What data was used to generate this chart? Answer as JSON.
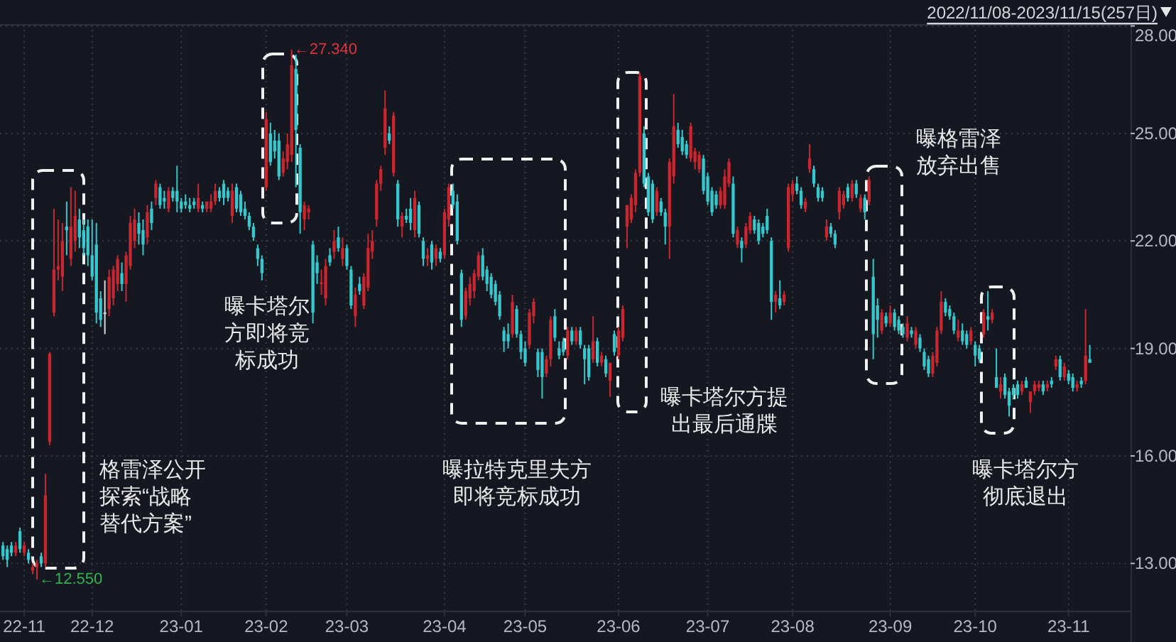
{
  "chart_data": {
    "type": "candlestick",
    "title": "2022/11/08-2023/11/15(257日)",
    "categories": [
      null,
      null,
      null,
      null,
      null,
      "22-11",
      null,
      null,
      null,
      null,
      null,
      null,
      null,
      null,
      null,
      null,
      null,
      null,
      null,
      null,
      null,
      "22-12",
      null,
      null,
      null,
      null,
      null,
      null,
      null,
      null,
      null,
      null,
      null,
      null,
      null,
      null,
      null,
      null,
      null,
      null,
      null,
      null,
      "23-01",
      null,
      null,
      null,
      null,
      null,
      null,
      null,
      null,
      null,
      null,
      null,
      null,
      null,
      null,
      null,
      null,
      null,
      null,
      null,
      "23-02",
      null,
      null,
      null,
      null,
      null,
      null,
      null,
      null,
      null,
      null,
      null,
      null,
      null,
      null,
      null,
      null,
      null,
      null,
      "23-03",
      null,
      null,
      null,
      null,
      null,
      null,
      null,
      null,
      null,
      null,
      null,
      null,
      null,
      null,
      null,
      null,
      null,
      null,
      null,
      null,
      null,
      null,
      "23-04",
      null,
      null,
      null,
      null,
      null,
      null,
      null,
      null,
      null,
      null,
      null,
      null,
      null,
      null,
      null,
      null,
      null,
      null,
      "23-05",
      null,
      null,
      null,
      null,
      null,
      null,
      null,
      null,
      null,
      null,
      null,
      null,
      null,
      null,
      null,
      null,
      null,
      null,
      null,
      null,
      null,
      "23-06",
      null,
      null,
      null,
      null,
      null,
      null,
      null,
      null,
      null,
      null,
      null,
      null,
      null,
      null,
      null,
      null,
      null,
      null,
      null,
      null,
      "23-07",
      null,
      null,
      null,
      null,
      null,
      null,
      null,
      null,
      null,
      null,
      null,
      null,
      null,
      null,
      null,
      null,
      null,
      null,
      null,
      "23-08",
      null,
      null,
      null,
      null,
      null,
      null,
      null,
      null,
      null,
      null,
      null,
      null,
      null,
      null,
      null,
      null,
      null,
      null,
      null,
      null,
      null,
      null,
      "23-09",
      null,
      null,
      null,
      null,
      null,
      null,
      null,
      null,
      null,
      null,
      null,
      null,
      null,
      null,
      null,
      null,
      null,
      null,
      null,
      "23-10",
      null,
      null,
      null,
      null,
      null,
      null,
      null,
      null,
      null,
      null,
      null,
      null,
      null,
      null,
      null,
      null,
      null,
      null,
      null,
      null,
      null,
      "23-11",
      null,
      null,
      null,
      null,
      null
    ],
    "ohlc": [
      [
        13.5,
        13.6,
        13.1,
        13.2
      ],
      [
        13.4,
        13.5,
        12.9,
        13.1
      ],
      [
        13.5,
        13.6,
        13.2,
        13.3
      ],
      [
        13.3,
        13.6,
        13.2,
        13.5
      ],
      [
        13.9,
        14.0,
        13.3,
        13.4
      ],
      [
        13.3,
        13.6,
        13.2,
        13.5
      ],
      [
        13.3,
        13.4,
        13.0,
        13.1
      ],
      [
        12.8,
        13.0,
        12.7,
        12.9
      ],
      [
        12.9,
        13.1,
        12.55,
        13.0
      ],
      [
        13.2,
        13.3,
        12.9,
        13.0
      ],
      [
        13.0,
        15.5,
        12.9,
        14.9
      ],
      [
        16.4,
        18.9,
        16.3,
        18.85
      ],
      [
        20.0,
        22.9,
        19.9,
        21.2
      ],
      [
        21.2,
        22.6,
        20.9,
        21.3
      ],
      [
        21.0,
        22.5,
        20.6,
        22.0
      ],
      [
        22.4,
        23.1,
        21.6,
        22.3
      ],
      [
        21.5,
        23.5,
        21.3,
        22.4
      ],
      [
        22.0,
        23.4,
        21.7,
        22.7
      ],
      [
        22.6,
        22.9,
        21.8,
        22.1
      ],
      [
        22.3,
        22.6,
        21.6,
        21.8
      ],
      [
        22.4,
        22.6,
        21.3,
        21.6
      ],
      [
        21.6,
        22.6,
        20.9,
        21.0
      ],
      [
        21.9,
        22.5,
        19.7,
        20.0
      ],
      [
        20.4,
        20.6,
        19.6,
        19.8
      ],
      [
        20.0,
        20.9,
        19.4,
        20.0
      ],
      [
        20.1,
        21.2,
        19.9,
        21.0
      ],
      [
        20.4,
        21.3,
        20.2,
        21.2
      ],
      [
        20.8,
        21.6,
        20.6,
        21.5
      ],
      [
        21.1,
        21.4,
        20.6,
        20.8
      ],
      [
        20.8,
        21.7,
        20.3,
        21.6
      ],
      [
        21.3,
        22.7,
        21.2,
        22.5
      ],
      [
        22.0,
        22.9,
        21.8,
        22.6
      ],
      [
        22.5,
        22.8,
        21.9,
        22.2
      ],
      [
        22.3,
        22.6,
        21.6,
        21.9
      ],
      [
        22.1,
        23.0,
        21.9,
        22.8
      ],
      [
        22.9,
        23.1,
        22.3,
        22.5
      ],
      [
        23.2,
        23.7,
        23.0,
        23.6
      ],
      [
        23.5,
        23.6,
        22.9,
        23.0
      ],
      [
        23.2,
        23.4,
        22.9,
        23.1
      ],
      [
        22.9,
        23.5,
        22.8,
        23.4
      ],
      [
        23.4,
        23.5,
        23.1,
        23.2
      ],
      [
        23.4,
        24.1,
        22.8,
        23.1
      ],
      [
        23.1,
        23.2,
        22.8,
        22.9
      ],
      [
        23.1,
        23.3,
        22.9,
        23.0
      ],
      [
        23.0,
        23.2,
        22.8,
        22.9
      ],
      [
        23.1,
        23.2,
        22.9,
        23.0
      ],
      [
        22.9,
        23.6,
        22.8,
        23.2
      ],
      [
        23.0,
        23.1,
        22.8,
        22.9
      ],
      [
        22.9,
        23.1,
        22.8,
        23.1
      ],
      [
        22.9,
        23.3,
        22.8,
        23.1
      ],
      [
        23.1,
        23.6,
        23.0,
        23.4
      ],
      [
        23.4,
        23.5,
        23.1,
        23.2
      ],
      [
        23.6,
        23.7,
        23.0,
        23.2
      ],
      [
        23.4,
        23.5,
        23.1,
        23.2
      ],
      [
        22.7,
        23.6,
        22.5,
        23.4
      ],
      [
        23.5,
        23.6,
        22.8,
        22.9
      ],
      [
        23.3,
        23.4,
        22.7,
        22.8
      ],
      [
        22.9,
        23.1,
        22.6,
        22.7
      ],
      [
        22.7,
        22.8,
        22.3,
        22.4
      ],
      [
        22.4,
        22.5,
        22.0,
        22.1
      ],
      [
        21.8,
        21.9,
        21.3,
        21.5
      ],
      [
        21.5,
        21.6,
        20.9,
        21.1
      ],
      [
        23.5,
        25.6,
        23.4,
        25.4
      ],
      [
        25.0,
        25.3,
        24.1,
        24.2
      ],
      [
        24.8,
        25.1,
        24.3,
        24.5
      ],
      [
        24.8,
        25.0,
        23.7,
        23.8
      ],
      [
        23.9,
        24.5,
        23.8,
        24.3
      ],
      [
        24.2,
        25.0,
        24.0,
        24.7
      ],
      [
        24.4,
        27.34,
        24.2,
        26.9
      ],
      [
        26.8,
        27.2,
        23.5,
        25.1
      ],
      [
        24.6,
        24.7,
        22.2,
        22.8
      ],
      [
        22.6,
        23.1,
        22.3,
        23.0
      ],
      [
        22.8,
        23.0,
        22.6,
        22.9
      ],
      [
        21.9,
        22.0,
        19.7,
        20.0
      ],
      [
        21.4,
        21.6,
        20.8,
        21.1
      ],
      [
        20.8,
        21.2,
        20.5,
        20.85
      ],
      [
        20.4,
        21.5,
        20.2,
        21.3
      ],
      [
        21.6,
        21.8,
        21.3,
        21.4
      ],
      [
        21.7,
        22.3,
        21.5,
        22.0
      ],
      [
        22.1,
        22.4,
        21.7,
        21.8
      ],
      [
        21.5,
        22.1,
        21.3,
        21.8
      ],
      [
        21.8,
        21.9,
        21.2,
        21.3
      ],
      [
        21.2,
        21.3,
        20.1,
        20.2
      ],
      [
        19.9,
        20.7,
        19.6,
        20.5
      ],
      [
        20.8,
        21.0,
        20.5,
        20.6
      ],
      [
        20.2,
        21.1,
        20.1,
        21.0
      ],
      [
        20.7,
        22.2,
        20.6,
        21.8
      ],
      [
        21.7,
        22.3,
        21.5,
        22.0
      ],
      [
        22.6,
        23.7,
        22.4,
        23.6
      ],
      [
        23.6,
        24.1,
        23.4,
        24.0
      ],
      [
        24.6,
        26.2,
        24.4,
        25.7
      ],
      [
        25.0,
        25.2,
        24.7,
        24.8
      ],
      [
        23.9,
        25.6,
        23.8,
        25.5
      ],
      [
        23.6,
        23.7,
        22.4,
        22.6
      ],
      [
        22.4,
        22.8,
        22.1,
        22.7
      ],
      [
        22.7,
        22.9,
        22.5,
        22.6
      ],
      [
        22.9,
        23.2,
        22.3,
        22.5
      ],
      [
        22.3,
        23.4,
        22.1,
        23.2
      ],
      [
        23.0,
        23.1,
        22.1,
        22.2
      ],
      [
        22.0,
        22.1,
        21.3,
        21.5
      ],
      [
        21.5,
        21.8,
        21.3,
        21.6
      ],
      [
        21.9,
        22.0,
        21.2,
        21.4
      ],
      [
        21.5,
        21.9,
        21.3,
        21.8
      ],
      [
        21.7,
        21.8,
        21.4,
        21.5
      ],
      [
        21.6,
        22.9,
        21.5,
        22.8
      ],
      [
        22.6,
        23.6,
        22.4,
        23.5
      ],
      [
        23.4,
        23.6,
        22.9,
        23.0
      ],
      [
        23.1,
        23.3,
        21.9,
        22.0
      ],
      [
        21.1,
        21.2,
        19.6,
        19.8
      ],
      [
        19.9,
        20.7,
        19.8,
        20.6
      ],
      [
        20.4,
        21.0,
        20.2,
        20.8
      ],
      [
        20.6,
        21.2,
        20.4,
        21.1
      ],
      [
        21.0,
        21.7,
        20.9,
        21.6
      ],
      [
        21.6,
        21.8,
        20.9,
        21.0
      ],
      [
        21.2,
        21.3,
        20.6,
        20.8
      ],
      [
        21.0,
        21.1,
        20.4,
        20.5
      ],
      [
        20.8,
        20.9,
        20.2,
        20.3
      ],
      [
        20.5,
        20.6,
        19.8,
        19.9
      ],
      [
        19.5,
        19.6,
        18.9,
        19.2
      ],
      [
        19.4,
        19.7,
        19.0,
        19.2
      ],
      [
        19.4,
        20.5,
        19.3,
        20.3
      ],
      [
        20.1,
        20.2,
        19.3,
        19.4
      ],
      [
        19.4,
        19.5,
        18.7,
        18.9
      ],
      [
        19.0,
        19.2,
        18.5,
        18.6
      ],
      [
        19.1,
        20.1,
        19.0,
        20.0
      ],
      [
        19.9,
        20.4,
        19.7,
        20.3
      ],
      [
        18.9,
        19.0,
        18.2,
        18.4
      ],
      [
        18.9,
        19.0,
        17.6,
        18.2
      ],
      [
        18.3,
        18.8,
        18.2,
        18.7
      ],
      [
        18.7,
        19.9,
        18.5,
        19.8
      ],
      [
        19.9,
        20.1,
        19.2,
        19.3
      ],
      [
        19.0,
        19.2,
        18.7,
        18.8
      ],
      [
        19.2,
        19.3,
        18.8,
        18.9
      ],
      [
        18.8,
        19.6,
        18.7,
        19.5
      ],
      [
        19.5,
        19.6,
        19.1,
        19.2
      ],
      [
        19.2,
        19.6,
        19.1,
        19.5
      ],
      [
        19.5,
        19.6,
        19.0,
        19.1
      ],
      [
        19.0,
        19.1,
        18.0,
        18.7
      ],
      [
        19.0,
        19.1,
        18.1,
        18.2
      ],
      [
        18.7,
        19.9,
        18.6,
        19.2
      ],
      [
        19.2,
        19.3,
        18.5,
        18.6
      ],
      [
        18.6,
        18.9,
        18.5,
        18.8
      ],
      [
        18.7,
        18.8,
        18.2,
        18.3
      ],
      [
        18.1,
        18.6,
        17.65,
        18.6
      ],
      [
        19.4,
        19.5,
        18.8,
        18.9
      ],
      [
        18.8,
        19.6,
        18.7,
        19.5
      ],
      [
        19.3,
        20.2,
        19.2,
        20.1
      ],
      [
        22.4,
        23.0,
        21.8,
        23.0
      ],
      [
        22.6,
        23.3,
        22.5,
        23.2
      ],
      [
        23.0,
        24.0,
        22.8,
        23.9
      ],
      [
        23.9,
        26.7,
        23.8,
        26.6
      ],
      [
        25.0,
        25.2,
        23.5,
        23.6
      ],
      [
        23.8,
        23.9,
        22.7,
        22.8
      ],
      [
        23.6,
        23.7,
        22.5,
        22.6
      ],
      [
        22.8,
        23.5,
        22.7,
        23.4
      ],
      [
        23.1,
        23.2,
        22.7,
        22.8
      ],
      [
        22.8,
        22.9,
        21.9,
        22.4
      ],
      [
        22.4,
        24.3,
        21.5,
        24.2
      ],
      [
        23.8,
        26.1,
        23.6,
        25.2
      ],
      [
        25.1,
        25.3,
        24.6,
        24.7
      ],
      [
        24.9,
        25.1,
        24.4,
        24.5
      ],
      [
        24.7,
        24.8,
        24.3,
        24.4
      ],
      [
        24.3,
        25.3,
        24.2,
        25.2
      ],
      [
        24.2,
        24.6,
        24.0,
        24.5
      ],
      [
        24.0,
        24.5,
        23.9,
        24.4
      ],
      [
        24.3,
        24.4,
        23.3,
        23.4
      ],
      [
        23.8,
        23.9,
        23.0,
        23.1
      ],
      [
        23.4,
        23.5,
        22.7,
        22.8
      ],
      [
        23.3,
        23.4,
        22.9,
        23.0
      ],
      [
        23.0,
        23.5,
        22.9,
        23.4
      ],
      [
        23.0,
        24.0,
        22.9,
        23.8
      ],
      [
        23.6,
        24.3,
        23.5,
        24.2
      ],
      [
        23.6,
        23.8,
        22.1,
        22.2
      ],
      [
        21.9,
        22.4,
        21.8,
        22.3
      ],
      [
        22.0,
        22.1,
        21.4,
        21.8
      ],
      [
        21.9,
        22.5,
        21.8,
        22.4
      ],
      [
        22.3,
        22.8,
        22.2,
        22.7
      ],
      [
        22.6,
        22.7,
        22.2,
        22.3
      ],
      [
        22.5,
        22.6,
        21.9,
        22.0
      ],
      [
        22.4,
        22.5,
        22.1,
        22.2
      ],
      [
        22.7,
        22.9,
        22.2,
        22.3
      ],
      [
        22.0,
        22.1,
        19.8,
        20.3
      ],
      [
        20.3,
        20.6,
        20.0,
        20.5
      ],
      [
        20.4,
        20.9,
        20.1,
        20.2
      ],
      [
        20.3,
        20.6,
        20.2,
        20.5
      ],
      [
        21.8,
        23.6,
        21.7,
        23.5
      ],
      [
        23.3,
        23.7,
        23.1,
        23.6
      ],
      [
        23.6,
        23.8,
        23.3,
        23.4
      ],
      [
        23.4,
        23.5,
        22.9,
        23.0
      ],
      [
        22.9,
        23.2,
        22.8,
        23.1
      ],
      [
        24.0,
        24.7,
        23.9,
        24.3
      ],
      [
        24.0,
        24.1,
        23.5,
        23.6
      ],
      [
        23.5,
        23.6,
        23.1,
        23.2
      ],
      [
        23.4,
        23.5,
        23.1,
        23.2
      ],
      [
        22.1,
        22.6,
        22.0,
        22.4
      ],
      [
        22.4,
        22.5,
        22.1,
        22.2
      ],
      [
        22.2,
        22.3,
        21.8,
        21.9
      ],
      [
        22.8,
        23.5,
        22.6,
        23.4
      ],
      [
        23.0,
        23.4,
        22.9,
        23.3
      ],
      [
        23.5,
        23.6,
        23.1,
        23.2
      ],
      [
        23.2,
        23.7,
        23.1,
        23.6
      ],
      [
        23.6,
        23.7,
        23.2,
        23.3
      ],
      [
        22.9,
        23.3,
        22.8,
        23.2
      ],
      [
        23.2,
        23.3,
        22.6,
        22.8
      ],
      [
        23.1,
        23.8,
        23.0,
        23.7
      ],
      [
        21.0,
        21.5,
        18.7,
        19.4
      ],
      [
        20.2,
        20.4,
        19.3,
        19.8
      ],
      [
        19.5,
        20.1,
        19.4,
        20.0
      ],
      [
        19.9,
        20.0,
        19.6,
        19.7
      ],
      [
        19.7,
        20.2,
        19.6,
        20.0
      ],
      [
        20.0,
        20.1,
        19.5,
        19.6
      ],
      [
        19.8,
        19.9,
        19.4,
        19.5
      ],
      [
        19.6,
        19.7,
        19.3,
        19.4
      ],
      [
        19.3,
        19.9,
        19.2,
        19.7
      ],
      [
        19.5,
        19.6,
        19.3,
        19.4
      ],
      [
        19.1,
        19.6,
        19.0,
        19.5
      ],
      [
        19.3,
        19.4,
        18.9,
        19.0
      ],
      [
        18.9,
        19.0,
        18.4,
        18.5
      ],
      [
        18.7,
        18.8,
        18.2,
        18.3
      ],
      [
        18.3,
        18.9,
        18.2,
        18.8
      ],
      [
        18.6,
        19.6,
        18.5,
        19.5
      ],
      [
        19.5,
        20.6,
        19.4,
        20.3
      ],
      [
        20.3,
        20.4,
        19.9,
        20.0
      ],
      [
        20.1,
        20.2,
        19.8,
        19.9
      ],
      [
        19.9,
        20.0,
        19.4,
        19.5
      ],
      [
        19.3,
        19.8,
        19.2,
        19.5
      ],
      [
        19.5,
        19.7,
        19.1,
        19.2
      ],
      [
        19.4,
        19.5,
        19.0,
        19.1
      ],
      [
        19.2,
        19.6,
        19.1,
        19.5
      ],
      [
        19.1,
        19.2,
        18.5,
        18.8
      ],
      [
        19.0,
        19.1,
        18.6,
        18.7
      ],
      [
        19.4,
        20.1,
        19.3,
        20.0
      ],
      [
        19.9,
        20.6,
        19.5,
        19.8
      ],
      [
        19.8,
        20.1,
        19.7,
        20.0
      ],
      [
        18.2,
        19.0,
        17.9,
        17.9
      ],
      [
        17.8,
        18.2,
        17.6,
        18.0
      ],
      [
        18.2,
        18.3,
        17.6,
        17.7
      ],
      [
        17.8,
        17.9,
        17.1,
        17.4
      ],
      [
        17.9,
        18.0,
        17.6,
        17.7
      ],
      [
        18.0,
        18.1,
        17.6,
        17.7
      ],
      [
        17.8,
        18.1,
        17.7,
        18.0
      ],
      [
        18.1,
        18.2,
        17.9,
        17.9
      ],
      [
        17.5,
        17.8,
        17.2,
        17.8
      ],
      [
        17.8,
        18.1,
        17.7,
        18.0
      ],
      [
        17.9,
        18.1,
        17.8,
        18.0
      ],
      [
        18.0,
        18.1,
        17.7,
        17.8
      ],
      [
        17.9,
        18.1,
        17.8,
        18.0
      ],
      [
        18.1,
        18.2,
        17.9,
        18.0
      ],
      [
        18.5,
        18.8,
        18.4,
        18.7
      ],
      [
        18.7,
        18.8,
        18.1,
        18.2
      ],
      [
        18.2,
        18.6,
        18.1,
        18.5
      ],
      [
        18.3,
        18.4,
        18.0,
        18.1
      ],
      [
        18.2,
        18.3,
        17.8,
        17.9
      ],
      [
        17.9,
        18.1,
        17.8,
        18.0
      ],
      [
        18.1,
        18.2,
        17.9,
        18.0
      ],
      [
        18.1,
        20.1,
        18.0,
        18.8
      ],
      [
        18.7,
        19.1,
        18.6,
        18.6
      ]
    ],
    "colors": [
      "#35c8cc",
      "#35c8cc",
      "#35c8cc",
      "#c9262f",
      "#35c8cc",
      "#c9262f",
      "#35c8cc",
      "#c9262f",
      "#c9262f",
      "#35c8cc",
      "#c9262f",
      "#c9262f",
      "#c9262f",
      "#c9262f",
      "#c9262f",
      "#35c8cc",
      "#c9262f",
      "#c9262f",
      "#35c8cc",
      "#35c8cc",
      "#35c8cc",
      "#35c8cc",
      "#35c8cc",
      "#35c8cc",
      "#d9d9d9",
      "#c9262f",
      "#c9262f",
      "#c9262f",
      "#35c8cc",
      "#c9262f",
      "#c9262f",
      "#c9262f",
      "#35c8cc",
      "#35c8cc",
      "#c9262f",
      "#35c8cc",
      "#c9262f",
      "#35c8cc",
      "#35c8cc",
      "#c9262f",
      "#35c8cc",
      "#35c8cc",
      "#35c8cc",
      "#35c8cc",
      "#35c8cc",
      "#35c8cc",
      "#c9262f",
      "#35c8cc",
      "#c9262f",
      "#c9262f",
      "#c9262f",
      "#35c8cc",
      "#35c8cc",
      "#35c8cc",
      "#c9262f",
      "#35c8cc",
      "#35c8cc",
      "#35c8cc",
      "#35c8cc",
      "#35c8cc",
      "#35c8cc",
      "#35c8cc",
      "#c9262f",
      "#35c8cc",
      "#35c8cc",
      "#35c8cc",
      "#c9262f",
      "#c9262f",
      "#c9262f",
      "#35c8cc",
      "#35c8cc",
      "#c9262f",
      "#c9262f",
      "#35c8cc",
      "#35c8cc",
      "#c9262f",
      "#c9262f",
      "#35c8cc",
      "#c9262f",
      "#35c8cc",
      "#c9262f",
      "#35c8cc",
      "#35c8cc",
      "#c9262f",
      "#35c8cc",
      "#c9262f",
      "#c9262f",
      "#c9262f",
      "#c9262f",
      "#c9262f",
      "#c9262f",
      "#35c8cc",
      "#c9262f",
      "#35c8cc",
      "#c9262f",
      "#35c8cc",
      "#35c8cc",
      "#c9262f",
      "#35c8cc",
      "#35c8cc",
      "#c9262f",
      "#35c8cc",
      "#c9262f",
      "#35c8cc",
      "#c9262f",
      "#c9262f",
      "#35c8cc",
      "#35c8cc",
      "#35c8cc",
      "#c9262f",
      "#c9262f",
      "#c9262f",
      "#c9262f",
      "#35c8cc",
      "#35c8cc",
      "#35c8cc",
      "#35c8cc",
      "#35c8cc",
      "#35c8cc",
      "#35c8cc",
      "#c9262f",
      "#35c8cc",
      "#35c8cc",
      "#35c8cc",
      "#c9262f",
      "#c9262f",
      "#35c8cc",
      "#35c8cc",
      "#c9262f",
      "#c9262f",
      "#35c8cc",
      "#35c8cc",
      "#35c8cc",
      "#c9262f",
      "#35c8cc",
      "#c9262f",
      "#35c8cc",
      "#35c8cc",
      "#35c8cc",
      "#c9262f",
      "#35c8cc",
      "#c9262f",
      "#35c8cc",
      "#c9262f",
      "#35c8cc",
      "#c9262f",
      "#c9262f",
      "#c9262f",
      "#c9262f",
      "#c9262f",
      "#c9262f",
      "#35c8cc",
      "#35c8cc",
      "#35c8cc",
      "#c9262f",
      "#35c8cc",
      "#35c8cc",
      "#c9262f",
      "#c9262f",
      "#35c8cc",
      "#35c8cc",
      "#35c8cc",
      "#c9262f",
      "#c9262f",
      "#c9262f",
      "#35c8cc",
      "#35c8cc",
      "#35c8cc",
      "#35c8cc",
      "#c9262f",
      "#c9262f",
      "#c9262f",
      "#35c8cc",
      "#c9262f",
      "#35c8cc",
      "#c9262f",
      "#c9262f",
      "#35c8cc",
      "#35c8cc",
      "#35c8cc",
      "#35c8cc",
      "#35c8cc",
      "#c9262f",
      "#35c8cc",
      "#c9262f",
      "#c9262f",
      "#c9262f",
      "#35c8cc",
      "#35c8cc",
      "#c9262f",
      "#c9262f",
      "#35c8cc",
      "#35c8cc",
      "#35c8cc",
      "#c9262f",
      "#35c8cc",
      "#35c8cc",
      "#c9262f",
      "#c9262f",
      "#35c8cc",
      "#c9262f",
      "#35c8cc",
      "#c9262f",
      "#35c8cc",
      "#c9262f",
      "#35c8cc",
      "#35c8cc",
      "#c9262f",
      "#35c8cc",
      "#c9262f",
      "#35c8cc",
      "#35c8cc",
      "#35c8cc",
      "#c9262f",
      "#35c8cc",
      "#c9262f",
      "#35c8cc",
      "#35c8cc",
      "#35c8cc",
      "#c9262f",
      "#c9262f",
      "#c9262f",
      "#35c8cc",
      "#35c8cc",
      "#35c8cc",
      "#c9262f",
      "#35c8cc",
      "#35c8cc",
      "#c9262f",
      "#35c8cc",
      "#35c8cc",
      "#c9262f",
      "#35c8cc",
      "#c9262f",
      "#35c8cc",
      "#c9262f",
      "#35c8cc",
      "#35c8cc",
      "#35c8cc",
      "#35c8cc",
      "#c9262f",
      "#35c8cc",
      "#c9262f",
      "#c9262f",
      "#c9262f",
      "#35c8cc",
      "#c9262f",
      "#35c8cc",
      "#c9262f",
      "#35c8cc",
      "#c9262f",
      "#35c8cc",
      "#35c8cc",
      "#c9262f",
      "#35c8cc",
      "#c9262f",
      "#35c8cc"
    ],
    "ylim": [
      11.68,
      28.05
    ],
    "yticks": [
      {
        "value": 13,
        "label": "13.00"
      },
      {
        "value": 16,
        "label": "16.00"
      },
      {
        "value": 19,
        "label": "19.00"
      },
      {
        "value": 22,
        "label": "22.00"
      },
      {
        "value": 25,
        "label": "25.00"
      },
      {
        "value": 28,
        "label": "28.00"
      }
    ],
    "grid": true,
    "annotations": [
      "格雷泽公开探索“战略替代方案”",
      "曝卡塔尔方即将竞标成功",
      "曝拉特克里夫方即将竞标成功",
      "曝卡塔尔方提出最后通牒",
      "曝格雷泽放弃出售",
      "曝卡塔尔方彻底退出",
      "←27.340",
      "←12.550"
    ]
  }
}
